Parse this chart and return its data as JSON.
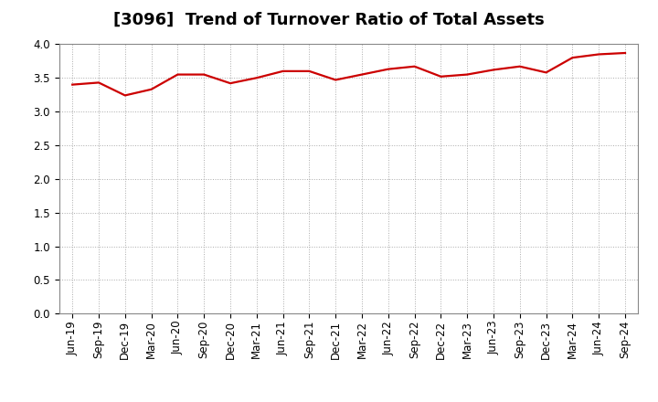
{
  "title": "[3096]  Trend of Turnover Ratio of Total Assets",
  "x_labels": [
    "Jun-19",
    "Sep-19",
    "Dec-19",
    "Mar-20",
    "Jun-20",
    "Sep-20",
    "Dec-20",
    "Mar-21",
    "Jun-21",
    "Sep-21",
    "Dec-21",
    "Mar-22",
    "Jun-22",
    "Sep-22",
    "Dec-22",
    "Mar-23",
    "Jun-23",
    "Sep-23",
    "Dec-23",
    "Mar-24",
    "Jun-24",
    "Sep-24"
  ],
  "values": [
    3.4,
    3.43,
    3.24,
    3.33,
    3.55,
    3.55,
    3.42,
    3.5,
    3.6,
    3.6,
    3.47,
    3.55,
    3.63,
    3.67,
    3.52,
    3.55,
    3.62,
    3.67,
    3.58,
    3.8,
    3.85,
    3.87
  ],
  "ylim": [
    0.0,
    4.0
  ],
  "yticks": [
    0.0,
    0.5,
    1.0,
    1.5,
    2.0,
    2.5,
    3.0,
    3.5,
    4.0
  ],
  "line_color": "#cc0000",
  "line_width": 1.6,
  "grid_color": "#aaaaaa",
  "background_color": "#ffffff",
  "title_fontsize": 13,
  "tick_fontsize": 8.5
}
